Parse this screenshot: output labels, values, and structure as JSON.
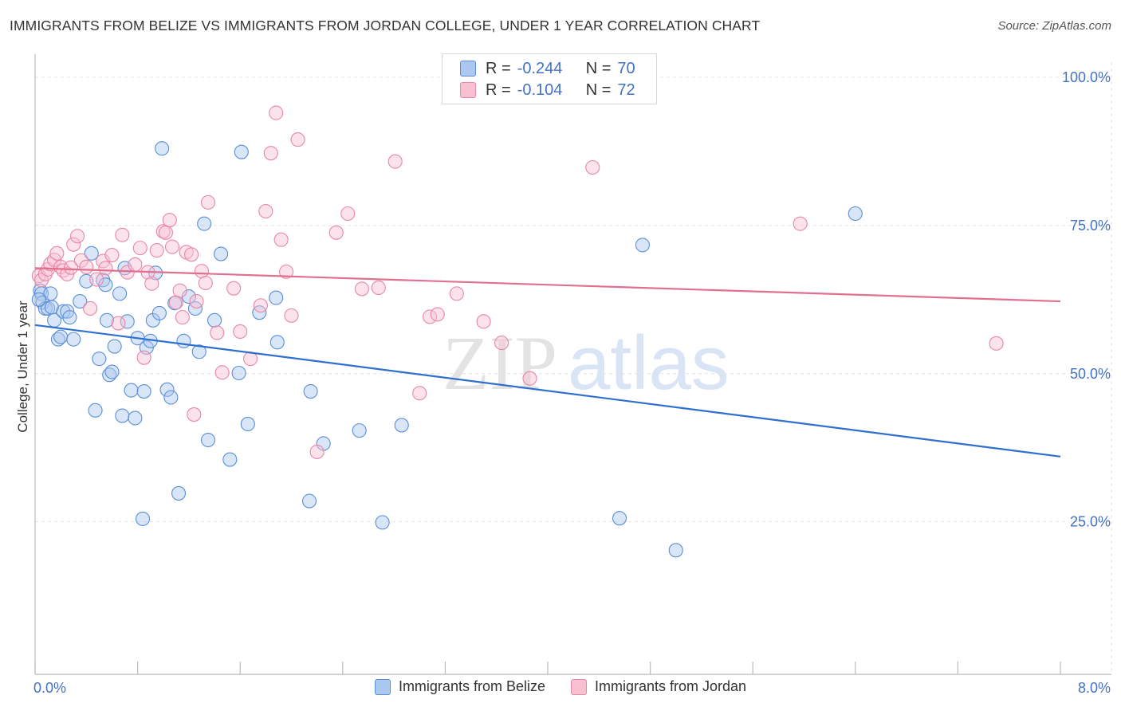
{
  "title": "IMMIGRANTS FROM BELIZE VS IMMIGRANTS FROM JORDAN COLLEGE, UNDER 1 YEAR CORRELATION CHART",
  "source": "Source: ZipAtlas.com",
  "watermark": {
    "zip": "ZIP",
    "atlas": "atlas"
  },
  "legend": {
    "r_label": "R =",
    "n_label": "N =",
    "rows": [
      {
        "r": "-0.244",
        "n": "70",
        "color": "#aac8f0",
        "border": "#5b8ed6"
      },
      {
        "r": "-0.104",
        "n": "72",
        "color": "#f9c0d2",
        "border": "#e887a6"
      }
    ]
  },
  "chart_data": {
    "type": "scatter",
    "ylabel": "College, Under 1 year",
    "xlim": [
      0,
      8
    ],
    "ylim": [
      0,
      105
    ],
    "x_tick_labels": [
      {
        "value": 0,
        "label": "0.0%"
      },
      {
        "value": 8,
        "label": "8.0%"
      }
    ],
    "y_tick_labels": [
      {
        "value": 25,
        "label": "25.0%"
      },
      {
        "value": 50,
        "label": "50.0%"
      },
      {
        "value": 75,
        "label": "75.0%"
      },
      {
        "value": 100,
        "label": "100.0%"
      }
    ],
    "grid": true,
    "series": [
      {
        "name": "Immigrants from Belize",
        "color": "#aac8f0",
        "stroke": "#5b8ed6",
        "line_color": "#2f6fce",
        "trend": {
          "x0": 0,
          "y0": 58.2,
          "x1": 8,
          "y1": 36.0
        },
        "points": [
          [
            0.04,
            64.0
          ],
          [
            0.05,
            63.5
          ],
          [
            0.06,
            62.0
          ],
          [
            0.08,
            61.0
          ],
          [
            0.1,
            61.0
          ],
          [
            0.12,
            63.5
          ],
          [
            0.13,
            61.2
          ],
          [
            0.15,
            59.0
          ],
          [
            0.18,
            55.8
          ],
          [
            0.2,
            56.2
          ],
          [
            0.22,
            60.5
          ],
          [
            0.25,
            60.5
          ],
          [
            0.27,
            59.5
          ],
          [
            0.3,
            55.8
          ],
          [
            0.35,
            62.2
          ],
          [
            0.4,
            65.6
          ],
          [
            0.44,
            70.3
          ],
          [
            0.47,
            43.8
          ],
          [
            0.5,
            52.5
          ],
          [
            0.53,
            65.8
          ],
          [
            0.55,
            65.0
          ],
          [
            0.56,
            59.0
          ],
          [
            0.58,
            49.8
          ],
          [
            0.6,
            50.3
          ],
          [
            0.62,
            54.6
          ],
          [
            0.66,
            63.5
          ],
          [
            0.68,
            42.9
          ],
          [
            0.7,
            67.8
          ],
          [
            0.72,
            58.8
          ],
          [
            0.75,
            47.2
          ],
          [
            0.78,
            42.5
          ],
          [
            0.8,
            56.0
          ],
          [
            0.84,
            25.5
          ],
          [
            0.85,
            47.0
          ],
          [
            0.87,
            54.4
          ],
          [
            0.9,
            55.5
          ],
          [
            0.92,
            59.0
          ],
          [
            0.94,
            67.0
          ],
          [
            0.97,
            60.2
          ],
          [
            0.99,
            88.0
          ],
          [
            1.03,
            47.3
          ],
          [
            1.06,
            46.0
          ],
          [
            1.09,
            61.9
          ],
          [
            1.12,
            29.8
          ],
          [
            1.16,
            55.5
          ],
          [
            1.2,
            63.0
          ],
          [
            1.25,
            61.0
          ],
          [
            1.28,
            53.7
          ],
          [
            1.32,
            75.3
          ],
          [
            1.35,
            38.8
          ],
          [
            1.4,
            59.0
          ],
          [
            1.45,
            70.2
          ],
          [
            1.52,
            35.5
          ],
          [
            1.59,
            50.1
          ],
          [
            1.61,
            87.4
          ],
          [
            1.66,
            41.5
          ],
          [
            1.75,
            60.3
          ],
          [
            1.88,
            62.8
          ],
          [
            1.89,
            55.3
          ],
          [
            2.14,
            28.5
          ],
          [
            2.15,
            47.0
          ],
          [
            2.25,
            38.2
          ],
          [
            2.53,
            40.4
          ],
          [
            2.71,
            24.9
          ],
          [
            2.86,
            41.3
          ],
          [
            4.56,
            25.6
          ],
          [
            4.74,
            71.7
          ],
          [
            5.0,
            20.2
          ],
          [
            6.4,
            77.0
          ],
          [
            0.03,
            62.5
          ]
        ]
      },
      {
        "name": "Immigrants from Jordan",
        "color": "#f9c0d2",
        "stroke": "#e887a6",
        "line_color": "#e0708f",
        "trend": {
          "x0": 0,
          "y0": 67.8,
          "x1": 8,
          "y1": 62.2
        },
        "points": [
          [
            0.03,
            66.5
          ],
          [
            0.05,
            65.8
          ],
          [
            0.08,
            66.8
          ],
          [
            0.1,
            67.6
          ],
          [
            0.12,
            68.5
          ],
          [
            0.15,
            69.2
          ],
          [
            0.17,
            70.3
          ],
          [
            0.2,
            68.0
          ],
          [
            0.22,
            67.4
          ],
          [
            0.25,
            66.8
          ],
          [
            0.28,
            67.9
          ],
          [
            0.3,
            71.8
          ],
          [
            0.33,
            73.2
          ],
          [
            0.36,
            69.1
          ],
          [
            0.4,
            68.0
          ],
          [
            0.43,
            61.0
          ],
          [
            0.48,
            65.9
          ],
          [
            0.53,
            69.0
          ],
          [
            0.55,
            67.8
          ],
          [
            0.6,
            70.0
          ],
          [
            0.65,
            58.5
          ],
          [
            0.68,
            73.4
          ],
          [
            0.72,
            67.1
          ],
          [
            0.78,
            68.4
          ],
          [
            0.82,
            71.2
          ],
          [
            0.85,
            52.7
          ],
          [
            0.88,
            67.1
          ],
          [
            0.91,
            65.2
          ],
          [
            0.95,
            70.8
          ],
          [
            1.0,
            74.0
          ],
          [
            1.02,
            73.8
          ],
          [
            1.05,
            75.9
          ],
          [
            1.07,
            71.4
          ],
          [
            1.1,
            62.0
          ],
          [
            1.13,
            64.0
          ],
          [
            1.15,
            59.5
          ],
          [
            1.18,
            70.5
          ],
          [
            1.22,
            70.1
          ],
          [
            1.24,
            43.1
          ],
          [
            1.26,
            62.2
          ],
          [
            1.3,
            67.3
          ],
          [
            1.33,
            65.3
          ],
          [
            1.35,
            78.9
          ],
          [
            1.42,
            56.9
          ],
          [
            1.46,
            50.2
          ],
          [
            1.55,
            64.4
          ],
          [
            1.6,
            57.1
          ],
          [
            1.68,
            52.5
          ],
          [
            1.76,
            61.5
          ],
          [
            1.8,
            77.4
          ],
          [
            1.84,
            87.2
          ],
          [
            1.88,
            94.0
          ],
          [
            1.92,
            72.6
          ],
          [
            1.96,
            67.2
          ],
          [
            2.0,
            59.8
          ],
          [
            2.05,
            89.5
          ],
          [
            2.2,
            36.8
          ],
          [
            2.35,
            73.8
          ],
          [
            2.44,
            77.0
          ],
          [
            2.55,
            64.3
          ],
          [
            2.68,
            64.5
          ],
          [
            2.81,
            85.8
          ],
          [
            3.0,
            46.7
          ],
          [
            3.08,
            59.6
          ],
          [
            3.14,
            60.0
          ],
          [
            3.29,
            63.5
          ],
          [
            3.5,
            58.8
          ],
          [
            3.64,
            55.2
          ],
          [
            3.86,
            49.2
          ],
          [
            4.35,
            84.8
          ],
          [
            5.97,
            75.3
          ],
          [
            7.5,
            55.1
          ]
        ]
      }
    ]
  },
  "bottom_legend": [
    "Immigrants from Belize",
    "Immigrants from Jordan"
  ]
}
